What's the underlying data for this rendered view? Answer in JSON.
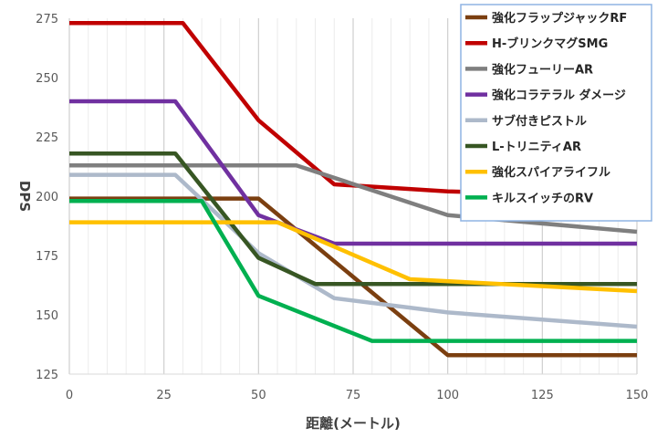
{
  "chart_data": {
    "type": "line",
    "title": "",
    "xlabel": "距離(メートル)",
    "ylabel": "DPS",
    "xlim": [
      0,
      150
    ],
    "ylim": [
      125,
      275
    ],
    "x_ticks": [
      "0",
      "25",
      "50",
      "75",
      "100",
      "125",
      "150"
    ],
    "y_ticks": [
      "125",
      "150",
      "175",
      "200",
      "225",
      "250",
      "275"
    ],
    "grid": {
      "major_x": true,
      "minor_x": true,
      "major_y": false
    },
    "legend_position": "top-right",
    "series": [
      {
        "name": "強化フラップジャックRF",
        "color": "#7b3f10",
        "points": [
          [
            0,
            199
          ],
          [
            50,
            199
          ],
          [
            100,
            133
          ],
          [
            150,
            133
          ]
        ]
      },
      {
        "name": "H-ブリンクマグSMG",
        "color": "#c00000",
        "points": [
          [
            0,
            273
          ],
          [
            30,
            273
          ],
          [
            50,
            232
          ],
          [
            70,
            205
          ],
          [
            100,
            202
          ],
          [
            150,
            200
          ]
        ]
      },
      {
        "name": "強化フューリーAR",
        "color": "#7f7f7f",
        "points": [
          [
            0,
            213
          ],
          [
            60,
            213
          ],
          [
            100,
            192
          ],
          [
            150,
            185
          ]
        ]
      },
      {
        "name": "強化コラテラル ダメージ",
        "color": "#7030a0",
        "points": [
          [
            0,
            240
          ],
          [
            28,
            240
          ],
          [
            50,
            192
          ],
          [
            70,
            180
          ],
          [
            150,
            180
          ]
        ]
      },
      {
        "name": "サブ付きピストル",
        "color": "#adb9ca",
        "points": [
          [
            0,
            209
          ],
          [
            28,
            209
          ],
          [
            50,
            176
          ],
          [
            70,
            157
          ],
          [
            100,
            151
          ],
          [
            150,
            145
          ]
        ]
      },
      {
        "name": "L-トリニティAR",
        "color": "#375623",
        "points": [
          [
            0,
            218
          ],
          [
            28,
            218
          ],
          [
            50,
            174
          ],
          [
            65,
            163
          ],
          [
            150,
            163
          ]
        ]
      },
      {
        "name": "強化スパイアライフル",
        "color": "#ffc000",
        "points": [
          [
            0,
            189
          ],
          [
            55,
            189
          ],
          [
            90,
            165
          ],
          [
            150,
            160
          ]
        ]
      },
      {
        "name": "キルスイッチのRV",
        "color": "#00b050",
        "points": [
          [
            0,
            198
          ],
          [
            35,
            198
          ],
          [
            50,
            158
          ],
          [
            80,
            139
          ],
          [
            150,
            139
          ]
        ]
      }
    ]
  }
}
